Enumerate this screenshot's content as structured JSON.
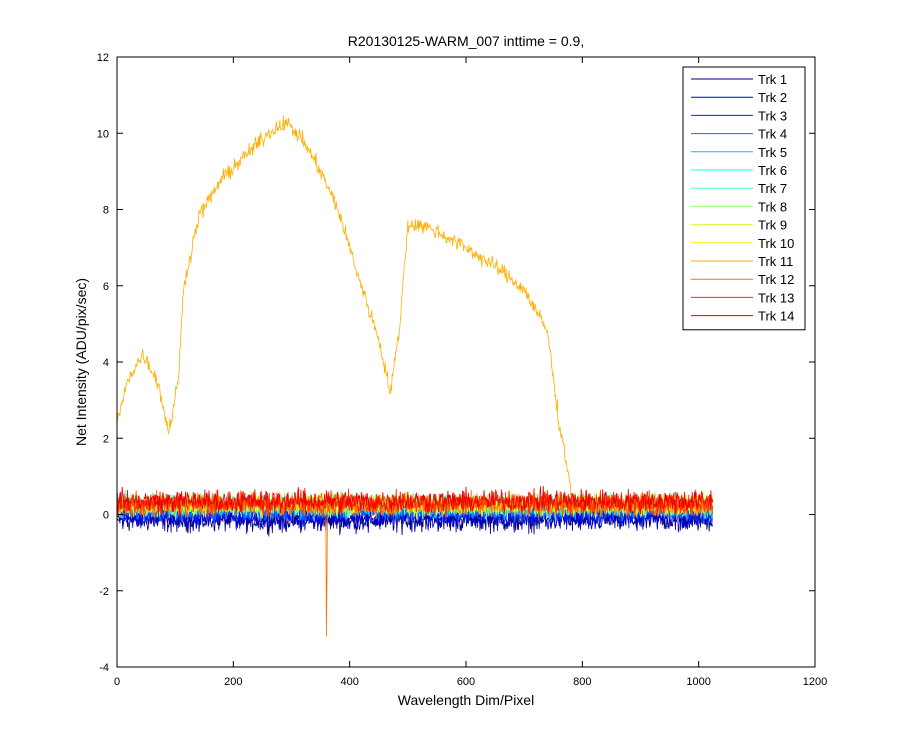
{
  "chart_data": {
    "type": "line",
    "title": "R20130125-WARM_007 inttime = 0.9,",
    "xlabel": "Wavelength Dim/Pixel",
    "ylabel": "Net Intensity (ADU/pix/sec)",
    "xlim": [
      0,
      1200
    ],
    "ylim": [
      -4,
      12
    ],
    "xticks": [
      0,
      200,
      400,
      600,
      800,
      1000,
      1200
    ],
    "yticks": [
      -4,
      -2,
      0,
      2,
      4,
      6,
      8,
      10,
      12
    ],
    "grid": false,
    "legend_position": "top-right",
    "x_range_data": [
      0,
      1024
    ],
    "series": [
      {
        "name": "Trk 1",
        "color": "#00007f",
        "level": -0.15,
        "noise": 0.45
      },
      {
        "name": "Trk 2",
        "color": "#0000cc",
        "level": -0.1,
        "noise": 0.45
      },
      {
        "name": "Trk 3",
        "color": "#0020ff",
        "level": 0.05,
        "noise": 0.4
      },
      {
        "name": "Trk 4",
        "color": "#0070ff",
        "level": 0.1,
        "noise": 0.4
      },
      {
        "name": "Trk 5",
        "color": "#00bfff",
        "level": 0.2,
        "noise": 0.4
      },
      {
        "name": "Trk 6",
        "color": "#10ffef",
        "level": 0.25,
        "noise": 0.4
      },
      {
        "name": "Trk 7",
        "color": "#50ffaf",
        "level": 0.25,
        "noise": 0.4
      },
      {
        "name": "Trk 8",
        "color": "#8fff70",
        "level": 0.25,
        "noise": 0.4
      },
      {
        "name": "Trk 9",
        "color": "#cfff30",
        "level": 0.25,
        "noise": 0.4
      },
      {
        "name": "Trk 10",
        "color": "#ffef00",
        "level": 0.25,
        "noise": 0.4
      },
      {
        "name": "Trk 11",
        "color": "#ffaf00",
        "level": 0.25,
        "noise": 0.4
      },
      {
        "name": "Trk 12",
        "color": "#ff6f00",
        "level": 0.25,
        "noise": 0.45
      },
      {
        "name": "Trk 13",
        "color": "#ff2f00",
        "level": 0.3,
        "noise": 0.45
      },
      {
        "name": "Trk 14",
        "color": "#ef0000",
        "level": 0.35,
        "noise": 0.45
      }
    ],
    "highlighted_series": {
      "name": "Trk 11",
      "profile_x": [
        0,
        20,
        45,
        70,
        88,
        95,
        105,
        115,
        140,
        180,
        220,
        260,
        290,
        320,
        350,
        380,
        420,
        450,
        470,
        485,
        500,
        520,
        540,
        600,
        660,
        700,
        740,
        760,
        775,
        780
      ],
      "profile_y": [
        2.4,
        3.6,
        4.2,
        3.5,
        2.2,
        2.6,
        3.5,
        6.0,
        7.8,
        8.8,
        9.4,
        10.0,
        10.3,
        9.8,
        9.0,
        8.0,
        6.0,
        4.6,
        3.2,
        4.8,
        7.6,
        7.6,
        7.5,
        7.0,
        6.4,
        5.9,
        4.8,
        2.4,
        1.2,
        0.6
      ],
      "spike_noise": 0.3
    },
    "annotations": [
      {
        "series": "Trk 12",
        "x": 360,
        "y_min": -3.2,
        "note": "single negative spike"
      }
    ]
  }
}
